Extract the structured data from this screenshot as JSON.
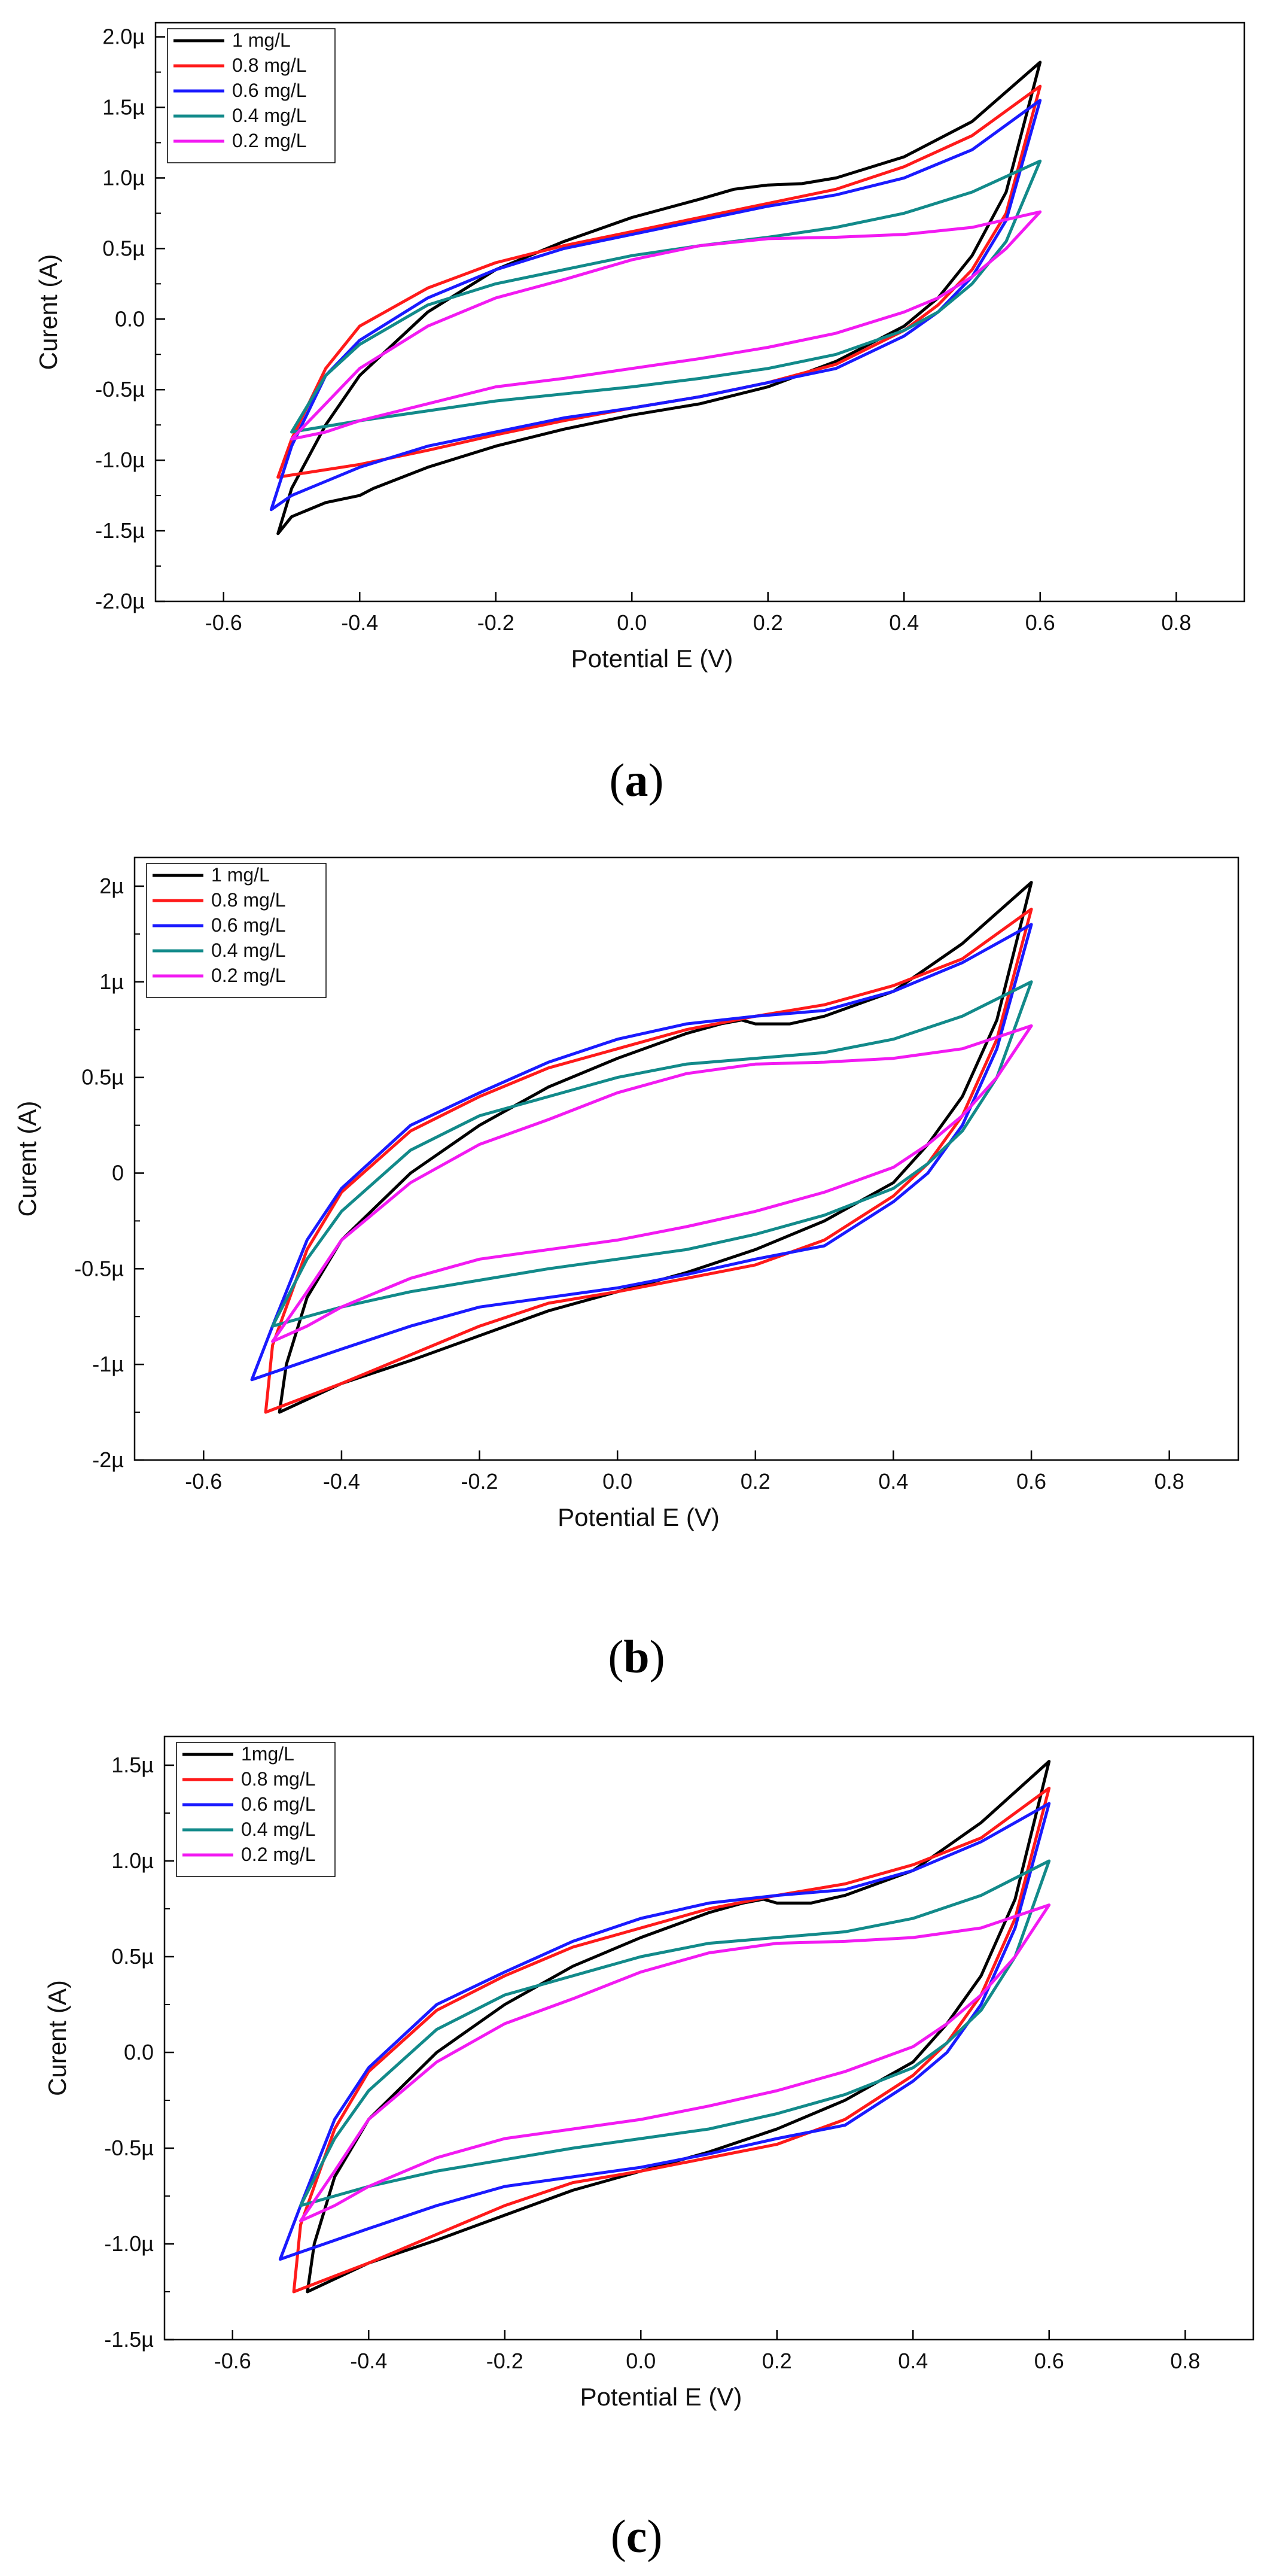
{
  "chart_data": [
    {
      "type": "line",
      "caption_open": "(",
      "caption_letter": "a",
      "caption_close": ")",
      "title": "",
      "xlabel": "Potential E (V)",
      "ylabel": "Curent (A)",
      "xlim": [
        -0.7,
        0.9
      ],
      "ylim": [
        -2.0,
        2.1
      ],
      "xticks": [
        -0.6,
        -0.4,
        -0.2,
        0.0,
        0.2,
        0.4,
        0.6,
        0.8
      ],
      "xtick_labels": [
        "-0.6",
        "-0.4",
        "-0.2",
        "0.0",
        "0.2",
        "0.4",
        "0.6",
        "0.8"
      ],
      "yticks": [
        -2.0,
        -1.5,
        -1.0,
        -0.5,
        0.0,
        0.5,
        1.0,
        1.5,
        2.0
      ],
      "ytick_labels": [
        "-2.0µ",
        "-1.5µ",
        "-1.0µ",
        "-0.5µ",
        "0.0",
        "0.5µ",
        "1.0µ",
        "1.5µ",
        "2.0µ"
      ],
      "legend_position": "top-left",
      "series": [
        {
          "name": "1 mg/L",
          "color": "#000000",
          "x": [
            -0.52,
            -0.5,
            -0.45,
            -0.4,
            -0.3,
            -0.2,
            -0.1,
            0.0,
            0.1,
            0.15,
            0.2,
            0.25,
            0.3,
            0.4,
            0.5,
            0.6,
            0.55,
            0.5,
            0.45,
            0.4,
            0.3,
            0.2,
            0.1,
            0.0,
            -0.1,
            -0.2,
            -0.3,
            -0.38,
            -0.4,
            -0.45,
            -0.5,
            -0.52
          ],
          "y": [
            -1.52,
            -1.2,
            -0.75,
            -0.4,
            0.05,
            0.35,
            0.55,
            0.72,
            0.85,
            0.92,
            0.95,
            0.96,
            1.0,
            1.15,
            1.4,
            1.82,
            0.9,
            0.45,
            0.15,
            -0.05,
            -0.3,
            -0.48,
            -0.6,
            -0.68,
            -0.78,
            -0.9,
            -1.05,
            -1.2,
            -1.25,
            -1.3,
            -1.4,
            -1.52
          ]
        },
        {
          "name": "0.8 mg/L",
          "color": "#ff1a1a",
          "x": [
            -0.52,
            -0.5,
            -0.45,
            -0.4,
            -0.3,
            -0.2,
            -0.1,
            0.0,
            0.1,
            0.2,
            0.3,
            0.4,
            0.5,
            0.6,
            0.55,
            0.5,
            0.45,
            0.4,
            0.3,
            0.2,
            0.1,
            0.0,
            -0.1,
            -0.2,
            -0.3,
            -0.4,
            -0.52
          ],
          "y": [
            -1.12,
            -0.85,
            -0.35,
            -0.05,
            0.22,
            0.4,
            0.52,
            0.62,
            0.72,
            0.82,
            0.92,
            1.08,
            1.3,
            1.65,
            0.75,
            0.35,
            0.1,
            -0.08,
            -0.32,
            -0.45,
            -0.55,
            -0.63,
            -0.72,
            -0.82,
            -0.93,
            -1.03,
            -1.12
          ]
        },
        {
          "name": "0.6 mg/L",
          "color": "#1a1aff",
          "x": [
            -0.53,
            -0.5,
            -0.45,
            -0.4,
            -0.3,
            -0.2,
            -0.1,
            0.0,
            0.1,
            0.2,
            0.3,
            0.4,
            0.5,
            0.6,
            0.55,
            0.5,
            0.45,
            0.4,
            0.3,
            0.2,
            0.1,
            0.0,
            -0.1,
            -0.2,
            -0.3,
            -0.4,
            -0.45,
            -0.5,
            -0.53
          ],
          "y": [
            -1.35,
            -0.9,
            -0.4,
            -0.15,
            0.15,
            0.35,
            0.5,
            0.6,
            0.7,
            0.8,
            0.88,
            1.0,
            1.2,
            1.55,
            0.7,
            0.3,
            0.05,
            -0.12,
            -0.35,
            -0.45,
            -0.55,
            -0.63,
            -0.7,
            -0.8,
            -0.9,
            -1.05,
            -1.15,
            -1.25,
            -1.35
          ]
        },
        {
          "name": "0.4 mg/L",
          "color": "#128a8a",
          "x": [
            -0.5,
            -0.45,
            -0.4,
            -0.3,
            -0.2,
            -0.1,
            0.0,
            0.1,
            0.2,
            0.3,
            0.4,
            0.5,
            0.6,
            0.55,
            0.5,
            0.45,
            0.4,
            0.3,
            0.2,
            0.1,
            0.0,
            -0.1,
            -0.2,
            -0.3,
            -0.4,
            -0.5
          ],
          "y": [
            -0.8,
            -0.4,
            -0.18,
            0.1,
            0.25,
            0.35,
            0.45,
            0.52,
            0.58,
            0.65,
            0.75,
            0.9,
            1.12,
            0.55,
            0.25,
            0.05,
            -0.08,
            -0.25,
            -0.35,
            -0.42,
            -0.48,
            -0.53,
            -0.58,
            -0.65,
            -0.72,
            -0.8
          ]
        },
        {
          "name": "0.2 mg/L",
          "color": "#f21af2",
          "x": [
            -0.5,
            -0.45,
            -0.4,
            -0.3,
            -0.2,
            -0.1,
            0.0,
            0.1,
            0.2,
            0.3,
            0.4,
            0.5,
            0.6,
            0.55,
            0.5,
            0.45,
            0.4,
            0.3,
            0.2,
            0.1,
            0.0,
            -0.1,
            -0.2,
            -0.3,
            -0.4,
            -0.45,
            -0.5
          ],
          "y": [
            -0.85,
            -0.6,
            -0.35,
            -0.05,
            0.15,
            0.28,
            0.42,
            0.52,
            0.57,
            0.58,
            0.6,
            0.65,
            0.76,
            0.5,
            0.3,
            0.15,
            0.05,
            -0.1,
            -0.2,
            -0.28,
            -0.35,
            -0.42,
            -0.48,
            -0.6,
            -0.72,
            -0.8,
            -0.85
          ]
        }
      ]
    },
    {
      "type": "line",
      "caption_open": "(",
      "caption_letter": "b",
      "caption_close": ")",
      "title": "",
      "xlabel": "Potential E (V)",
      "ylabel": "Curent (A)",
      "xlim": [
        -0.7,
        0.9
      ],
      "ylim": [
        -1.5,
        1.65
      ],
      "xticks": [
        -0.6,
        -0.4,
        -0.2,
        0.0,
        0.2,
        0.4,
        0.6,
        0.8
      ],
      "xtick_labels": [
        "-0.6",
        "-0.4",
        "-0.2",
        "0.0",
        "0.2",
        "0.4",
        "0.6",
        "0.8"
      ],
      "yticks": [
        -1.5,
        -1.0,
        -0.5,
        0.0,
        0.5,
        1.0,
        1.5
      ],
      "ytick_labels": [
        "-2µ",
        "-1µ",
        "-0.5µ",
        "0",
        "0.5µ",
        "1µ",
        "2µ"
      ],
      "legend_position": "top-left",
      "series": [
        {
          "name": "1 mg/L",
          "color": "#000000",
          "x": [
            -0.49,
            -0.48,
            -0.45,
            -0.4,
            -0.3,
            -0.2,
            -0.1,
            0.0,
            0.1,
            0.15,
            0.18,
            0.2,
            0.25,
            0.3,
            0.4,
            0.5,
            0.6,
            0.55,
            0.5,
            0.45,
            0.4,
            0.3,
            0.2,
            0.1,
            0.0,
            -0.1,
            -0.2,
            -0.3,
            -0.4,
            -0.49
          ],
          "y": [
            -1.25,
            -1.0,
            -0.65,
            -0.35,
            0.0,
            0.25,
            0.45,
            0.6,
            0.73,
            0.78,
            0.8,
            0.78,
            0.78,
            0.82,
            0.95,
            1.2,
            1.52,
            0.8,
            0.4,
            0.15,
            -0.05,
            -0.25,
            -0.4,
            -0.52,
            -0.62,
            -0.72,
            -0.85,
            -0.98,
            -1.1,
            -1.25
          ]
        },
        {
          "name": "0.8 mg/L",
          "color": "#ff1a1a",
          "x": [
            -0.51,
            -0.5,
            -0.45,
            -0.4,
            -0.3,
            -0.2,
            -0.1,
            0.0,
            0.1,
            0.2,
            0.3,
            0.4,
            0.5,
            0.6,
            0.55,
            0.5,
            0.45,
            0.4,
            0.3,
            0.2,
            0.1,
            0.0,
            -0.1,
            -0.2,
            -0.3,
            -0.4,
            -0.51
          ],
          "y": [
            -1.25,
            -0.9,
            -0.4,
            -0.1,
            0.22,
            0.4,
            0.55,
            0.65,
            0.75,
            0.82,
            0.88,
            0.98,
            1.12,
            1.38,
            0.7,
            0.3,
            0.05,
            -0.12,
            -0.35,
            -0.48,
            -0.55,
            -0.62,
            -0.68,
            -0.8,
            -0.95,
            -1.1,
            -1.25
          ]
        },
        {
          "name": "0.6 mg/L",
          "color": "#1a1aff",
          "x": [
            -0.53,
            -0.5,
            -0.45,
            -0.4,
            -0.3,
            -0.2,
            -0.1,
            0.0,
            0.1,
            0.15,
            0.2,
            0.3,
            0.4,
            0.5,
            0.6,
            0.55,
            0.5,
            0.45,
            0.4,
            0.3,
            0.2,
            0.1,
            0.0,
            -0.1,
            -0.2,
            -0.3,
            -0.4,
            -0.53
          ],
          "y": [
            -1.08,
            -0.8,
            -0.35,
            -0.08,
            0.25,
            0.42,
            0.58,
            0.7,
            0.78,
            0.8,
            0.82,
            0.85,
            0.95,
            1.1,
            1.3,
            0.65,
            0.25,
            0.0,
            -0.15,
            -0.38,
            -0.45,
            -0.53,
            -0.6,
            -0.65,
            -0.7,
            -0.8,
            -0.92,
            -1.08
          ]
        },
        {
          "name": "0.4 mg/L",
          "color": "#128a8a",
          "x": [
            -0.5,
            -0.45,
            -0.4,
            -0.3,
            -0.2,
            -0.1,
            0.0,
            0.1,
            0.2,
            0.3,
            0.4,
            0.5,
            0.6,
            0.55,
            0.5,
            0.45,
            0.4,
            0.3,
            0.2,
            0.1,
            0.0,
            -0.1,
            -0.2,
            -0.3,
            -0.4,
            -0.5
          ],
          "y": [
            -0.8,
            -0.45,
            -0.2,
            0.12,
            0.3,
            0.4,
            0.5,
            0.57,
            0.6,
            0.63,
            0.7,
            0.82,
            1.0,
            0.5,
            0.22,
            0.05,
            -0.08,
            -0.22,
            -0.32,
            -0.4,
            -0.45,
            -0.5,
            -0.56,
            -0.62,
            -0.7,
            -0.8
          ]
        },
        {
          "name": "0.2 mg/L",
          "color": "#f21af2",
          "x": [
            -0.5,
            -0.45,
            -0.4,
            -0.3,
            -0.2,
            -0.1,
            0.0,
            0.1,
            0.2,
            0.3,
            0.4,
            0.5,
            0.6,
            0.55,
            0.5,
            0.45,
            0.4,
            0.3,
            0.2,
            0.1,
            0.0,
            -0.1,
            -0.2,
            -0.3,
            -0.4,
            -0.45,
            -0.5
          ],
          "y": [
            -0.88,
            -0.62,
            -0.35,
            -0.05,
            0.15,
            0.28,
            0.42,
            0.52,
            0.57,
            0.58,
            0.6,
            0.65,
            0.77,
            0.5,
            0.3,
            0.15,
            0.03,
            -0.1,
            -0.2,
            -0.28,
            -0.35,
            -0.4,
            -0.45,
            -0.55,
            -0.7,
            -0.8,
            -0.88
          ]
        }
      ]
    },
    {
      "type": "line",
      "caption_open": "(",
      "caption_letter": "c",
      "caption_close": ")",
      "title": "",
      "xlabel": "Potential E (V)",
      "ylabel": "Curent (A)",
      "xlim": [
        -0.7,
        0.9
      ],
      "ylim": [
        -1.5,
        1.65
      ],
      "xticks": [
        -0.6,
        -0.4,
        -0.2,
        0.0,
        0.2,
        0.4,
        0.6,
        0.8
      ],
      "xtick_labels": [
        "-0.6",
        "-0.4",
        "-0.2",
        "0.0",
        "0.2",
        "0.4",
        "0.6",
        "0.8"
      ],
      "yticks": [
        -1.5,
        -1.0,
        -0.5,
        0.0,
        0.5,
        1.0,
        1.5
      ],
      "ytick_labels": [
        "-1.5µ",
        "-1.0µ",
        "-0.5µ",
        "0.0",
        "0.5µ",
        "1.0µ",
        "1.5µ"
      ],
      "legend_position": "top-left",
      "series": [
        {
          "name": "1mg/L",
          "color": "#000000",
          "x": [
            -0.49,
            -0.48,
            -0.45,
            -0.4,
            -0.3,
            -0.2,
            -0.1,
            0.0,
            0.1,
            0.15,
            0.18,
            0.2,
            0.25,
            0.3,
            0.4,
            0.5,
            0.6,
            0.55,
            0.5,
            0.45,
            0.4,
            0.3,
            0.2,
            0.1,
            0.0,
            -0.1,
            -0.2,
            -0.3,
            -0.4,
            -0.49
          ],
          "y": [
            -1.25,
            -1.0,
            -0.65,
            -0.35,
            0.0,
            0.25,
            0.45,
            0.6,
            0.73,
            0.78,
            0.8,
            0.78,
            0.78,
            0.82,
            0.95,
            1.2,
            1.52,
            0.8,
            0.4,
            0.15,
            -0.05,
            -0.25,
            -0.4,
            -0.52,
            -0.62,
            -0.72,
            -0.85,
            -0.98,
            -1.1,
            -1.25
          ]
        },
        {
          "name": "0.8 mg/L",
          "color": "#ff1a1a",
          "x": [
            -0.51,
            -0.5,
            -0.45,
            -0.4,
            -0.3,
            -0.2,
            -0.1,
            0.0,
            0.1,
            0.2,
            0.3,
            0.4,
            0.5,
            0.6,
            0.55,
            0.5,
            0.45,
            0.4,
            0.3,
            0.2,
            0.1,
            0.0,
            -0.1,
            -0.2,
            -0.3,
            -0.4,
            -0.51
          ],
          "y": [
            -1.25,
            -0.9,
            -0.4,
            -0.1,
            0.22,
            0.4,
            0.55,
            0.65,
            0.75,
            0.82,
            0.88,
            0.98,
            1.12,
            1.38,
            0.7,
            0.3,
            0.05,
            -0.12,
            -0.35,
            -0.48,
            -0.55,
            -0.62,
            -0.68,
            -0.8,
            -0.95,
            -1.1,
            -1.25
          ]
        },
        {
          "name": "0.6 mg/L",
          "color": "#1a1aff",
          "x": [
            -0.53,
            -0.5,
            -0.45,
            -0.4,
            -0.3,
            -0.2,
            -0.1,
            0.0,
            0.1,
            0.15,
            0.2,
            0.3,
            0.4,
            0.5,
            0.6,
            0.55,
            0.5,
            0.45,
            0.4,
            0.3,
            0.2,
            0.1,
            0.0,
            -0.1,
            -0.2,
            -0.3,
            -0.4,
            -0.53
          ],
          "y": [
            -1.08,
            -0.8,
            -0.35,
            -0.08,
            0.25,
            0.42,
            0.58,
            0.7,
            0.78,
            0.8,
            0.82,
            0.85,
            0.95,
            1.1,
            1.3,
            0.65,
            0.25,
            0.0,
            -0.15,
            -0.38,
            -0.45,
            -0.53,
            -0.6,
            -0.65,
            -0.7,
            -0.8,
            -0.92,
            -1.08
          ]
        },
        {
          "name": "0.4 mg/L",
          "color": "#128a8a",
          "x": [
            -0.5,
            -0.45,
            -0.4,
            -0.3,
            -0.2,
            -0.1,
            0.0,
            0.1,
            0.2,
            0.3,
            0.4,
            0.5,
            0.6,
            0.55,
            0.5,
            0.45,
            0.4,
            0.3,
            0.2,
            0.1,
            0.0,
            -0.1,
            -0.2,
            -0.3,
            -0.4,
            -0.5
          ],
          "y": [
            -0.8,
            -0.45,
            -0.2,
            0.12,
            0.3,
            0.4,
            0.5,
            0.57,
            0.6,
            0.63,
            0.7,
            0.82,
            1.0,
            0.5,
            0.22,
            0.05,
            -0.08,
            -0.22,
            -0.32,
            -0.4,
            -0.45,
            -0.5,
            -0.56,
            -0.62,
            -0.7,
            -0.8
          ]
        },
        {
          "name": "0.2 mg/L",
          "color": "#f21af2",
          "x": [
            -0.5,
            -0.45,
            -0.4,
            -0.3,
            -0.2,
            -0.1,
            0.0,
            0.1,
            0.2,
            0.3,
            0.4,
            0.5,
            0.6,
            0.55,
            0.5,
            0.45,
            0.4,
            0.3,
            0.2,
            0.1,
            0.0,
            -0.1,
            -0.2,
            -0.3,
            -0.4,
            -0.45,
            -0.5
          ],
          "y": [
            -0.88,
            -0.62,
            -0.35,
            -0.05,
            0.15,
            0.28,
            0.42,
            0.52,
            0.57,
            0.58,
            0.6,
            0.65,
            0.77,
            0.5,
            0.3,
            0.15,
            0.03,
            -0.1,
            -0.2,
            -0.28,
            -0.35,
            -0.4,
            -0.45,
            -0.55,
            -0.7,
            -0.8,
            -0.88
          ]
        }
      ]
    }
  ]
}
